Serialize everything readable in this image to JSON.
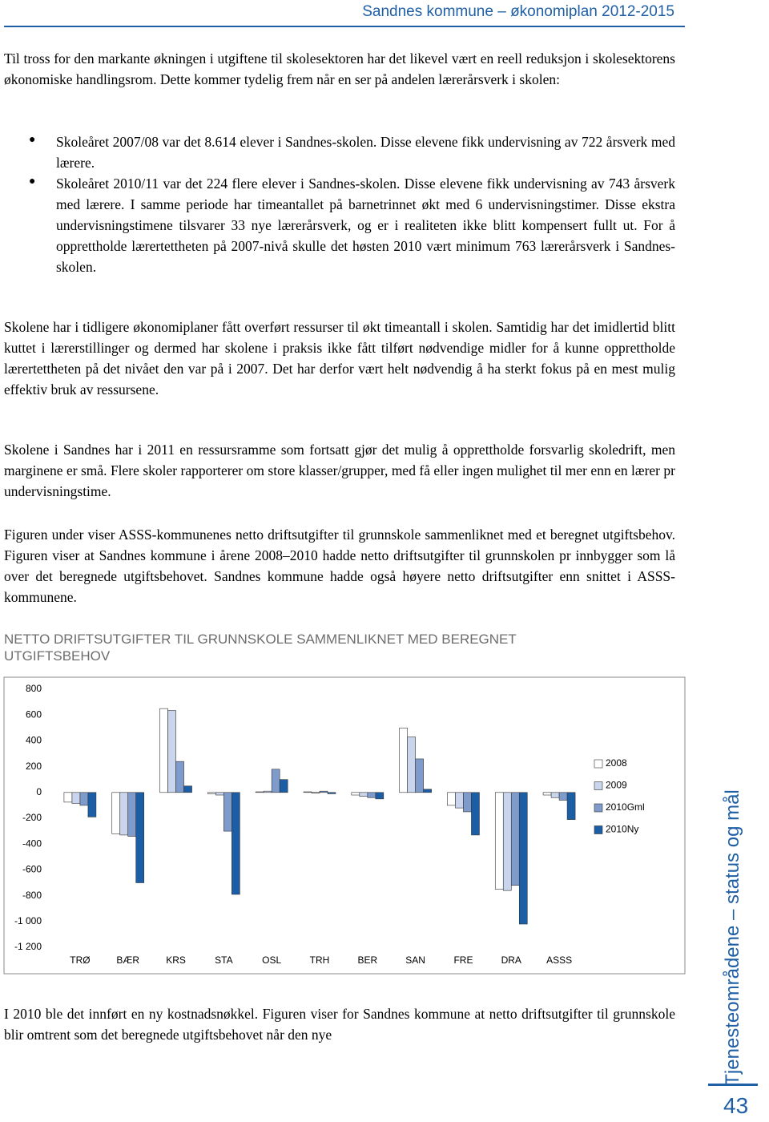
{
  "header": {
    "title": "Sandnes kommune – økonomiplan 2012-2015"
  },
  "paragraphs": [
    "Til tross for den markante økningen i utgiftene til skolesektoren har det likevel vært en reell reduksjon i skolesektorens økonomiske handlingsrom. Dette kommer tydelig frem når en ser på andelen lærerårsverk i skolen:",
    "Skolene har i tidligere økonomiplaner fått overført ressurser til økt timeantall i skolen. Samtidig har det imidlertid blitt kuttet i lærerstillinger og dermed har skolene i praksis ikke fått tilført nødvendige midler for å kunne opprettholde lærertettheten på det nivået den var på i 2007. Det har derfor vært helt nødvendig å ha sterkt fokus på en mest mulig effektiv bruk av ressursene.",
    "Skolene i Sandnes har i 2011 en ressursramme som fortsatt gjør det mulig å opprettholde forsvarlig skoledrift, men marginene er små. Flere skoler rapporterer om store klasser/grupper, med få eller ingen mulighet til mer enn en lærer pr undervisningstime.",
    "Figuren under viser ASSS-kommunenes netto driftsutgifter til grunnskole sammenliknet med et beregnet utgiftsbehov. Figuren viser at Sandnes kommune i årene 2008–2010 hadde netto driftsutgifter til grunnskolen pr innbygger som lå over det beregnede utgiftsbehovet. Sandnes kommune hadde også høyere netto driftsutgifter enn snittet i ASSS-kommunene.",
    "I 2010 ble det innført en ny kostnadsnøkkel. Figuren viser for Sandnes kommune at netto driftsutgifter til grunnskole blir omtrent som det beregnede utgiftsbehovet når den nye"
  ],
  "bullets": [
    "Skoleåret 2007/08 var det 8.614 elever i Sandnes-skolen. Disse elevene fikk undervisning av 722 årsverk med lærere.",
    "Skoleåret 2010/11 var det 224 flere elever i Sandnes-skolen. Disse elevene fikk undervisning av 743 årsverk med lærere. I samme periode har timeantallet på barnetrinnet økt med 6 undervisningstimer. Disse ekstra undervisningstimene tilsvarer 33 nye lærerårsverk, og er i realiteten ikke blitt kompensert fullt ut. For å opprettholde lærertettheten på 2007-nivå skulle det høsten 2010 vært minimum 763 lærerårsverk i Sandnes-skolen."
  ],
  "figure_title": "NETTO DRIFTSUTGIFTER TIL GRUNNSKOLE SAMMENLIKNET MED BEREGNET UTGIFTSBEHOV",
  "chart_data": {
    "type": "bar",
    "categories": [
      "TRØ",
      "BÆR",
      "KRS",
      "STA",
      "OSL",
      "TRH",
      "BER",
      "SAN",
      "FRE",
      "DRA",
      "ASSS"
    ],
    "series": [
      {
        "name": "2008",
        "color": "#ffffff",
        "values": [
          -75,
          -320,
          650,
          -10,
          5,
          5,
          -20,
          500,
          -100,
          -750,
          -20
        ]
      },
      {
        "name": "2009",
        "color": "#c9d5ec",
        "values": [
          -85,
          -330,
          635,
          -20,
          10,
          -5,
          -30,
          430,
          -120,
          -760,
          -40
        ]
      },
      {
        "name": "2010Gml",
        "color": "#7f9bcb",
        "values": [
          -100,
          -340,
          240,
          -300,
          180,
          10,
          -40,
          260,
          -150,
          -720,
          -60
        ]
      },
      {
        "name": "2010Ny",
        "color": "#1c5ea6",
        "values": [
          -190,
          -700,
          50,
          -790,
          100,
          -10,
          -50,
          25,
          -330,
          -1020,
          -210
        ]
      }
    ],
    "ylim": [
      -1200,
      800
    ],
    "yticks": [
      800,
      600,
      400,
      200,
      0,
      -200,
      -400,
      -600,
      -800,
      {
        "value": -1000,
        "label": "-1 000"
      },
      {
        "value": -1200,
        "label": "-1 200"
      }
    ],
    "grid": false,
    "legend": "right"
  },
  "sidebar": {
    "label": "Tjenesteområdene – status og mål",
    "page_number": "43"
  }
}
